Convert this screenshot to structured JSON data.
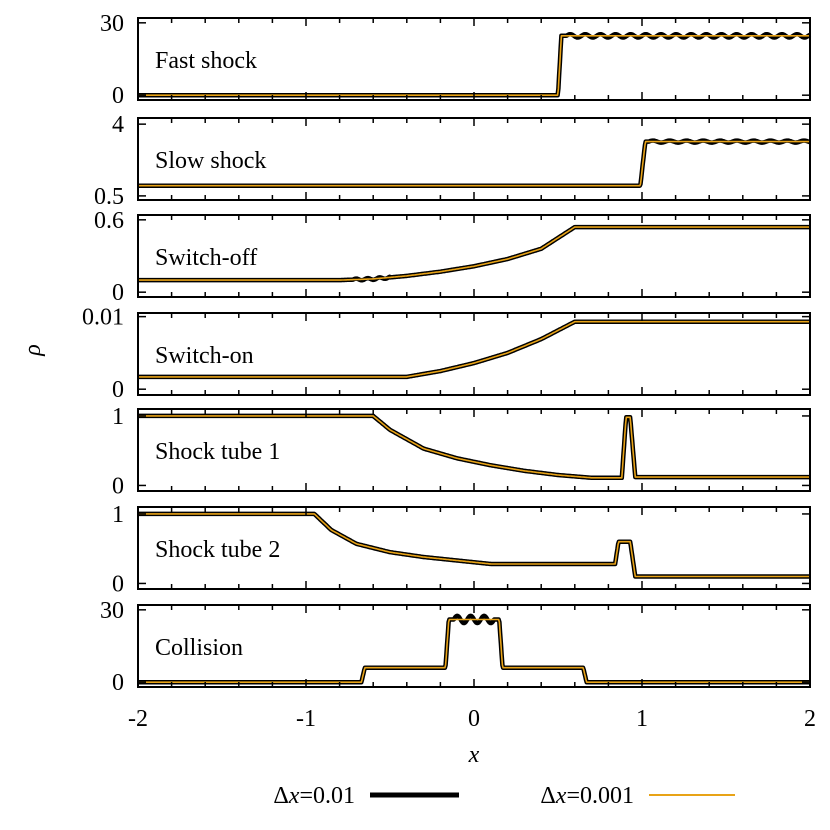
{
  "chart_data": {
    "type": "line",
    "x_axis": {
      "label": "x",
      "range": [
        -2,
        2
      ],
      "ticks": [
        -2,
        -1,
        0,
        1,
        2
      ],
      "tick_labels": [
        "-2",
        "-1",
        "0",
        "1",
        "2"
      ]
    },
    "y_axis": {
      "label": "ρ"
    },
    "legend": {
      "placement": "bottom",
      "entries": [
        {
          "label_prefix": "Δ",
          "label_var": "x",
          "label_value": "=0.01",
          "color": "#000000"
        },
        {
          "label_prefix": "Δ",
          "label_var": "x",
          "label_value": "=0.001",
          "color": "#E8A317"
        }
      ]
    },
    "panels": [
      {
        "name": "Fast shock",
        "ylim": [
          -2,
          32
        ],
        "yticks": [
          0,
          30
        ],
        "ytick_labels": [
          "0",
          "30"
        ],
        "profile": {
          "x": [
            -2,
            0.5,
            0.52,
            2
          ],
          "y": [
            0,
            0,
            24.6,
            24.6
          ]
        },
        "oscillation": {
          "start": 0.55,
          "end": 2.0,
          "amp": 0.7,
          "wavelength": 0.09
        }
      },
      {
        "name": "Slow shock",
        "ylim": [
          0.3,
          4.3
        ],
        "yticks": [
          0.5,
          4
        ],
        "ytick_labels": [
          "0.5",
          "4"
        ],
        "profile": {
          "x": [
            -2,
            0.99,
            1.02,
            2
          ],
          "y": [
            1.0,
            1.0,
            3.15,
            3.15
          ]
        },
        "oscillation": {
          "start": 1.04,
          "end": 2.0,
          "amp": 0.05,
          "wavelength": 0.1
        }
      },
      {
        "name": "Switch-off",
        "ylim": [
          -0.04,
          0.64
        ],
        "yticks": [
          0,
          0.6
        ],
        "ytick_labels": [
          "0",
          "0.6"
        ],
        "profile": {
          "x": [
            -2,
            -0.8,
            -0.6,
            -0.4,
            -0.2,
            0,
            0.2,
            0.4,
            0.6,
            2
          ],
          "y": [
            0.1,
            0.1,
            0.11,
            0.135,
            0.17,
            0.215,
            0.275,
            0.36,
            0.54,
            0.54
          ]
        },
        "oscillation": {
          "start": -0.72,
          "end": -0.5,
          "amp": 0.008,
          "wavelength": 0.07
        }
      },
      {
        "name": "Switch-on",
        "ylim": [
          -0.0008,
          0.0105
        ],
        "yticks": [
          0,
          0.01
        ],
        "ytick_labels": [
          "0",
          "0.01"
        ],
        "profile": {
          "x": [
            -2,
            -0.4,
            -0.2,
            0,
            0.2,
            0.4,
            0.6,
            2
          ],
          "y": [
            0.0017,
            0.0017,
            0.0025,
            0.0036,
            0.005,
            0.0069,
            0.0093,
            0.0093
          ]
        },
        "oscillation": null
      },
      {
        "name": "Shock tube 1",
        "ylim": [
          -0.08,
          1.1
        ],
        "yticks": [
          0,
          1
        ],
        "ytick_labels": [
          "0",
          "1"
        ],
        "profile": {
          "x": [
            -2,
            -0.6,
            -0.5,
            -0.3,
            -0.1,
            0.1,
            0.3,
            0.5,
            0.7,
            0.88,
            0.905,
            0.93,
            0.96,
            2
          ],
          "y": [
            1.0,
            1.0,
            0.8,
            0.53,
            0.39,
            0.29,
            0.21,
            0.15,
            0.11,
            0.11,
            0.98,
            0.98,
            0.12,
            0.12
          ]
        },
        "oscillation": null
      },
      {
        "name": "Shock tube 2",
        "ylim": [
          -0.08,
          1.1
        ],
        "yticks": [
          0,
          1
        ],
        "ytick_labels": [
          "0",
          "1"
        ],
        "profile": {
          "x": [
            -2,
            -0.95,
            -0.85,
            -0.7,
            -0.5,
            -0.3,
            -0.1,
            0.1,
            0.5,
            0.84,
            0.86,
            0.93,
            0.96,
            2
          ],
          "y": [
            1.0,
            1.0,
            0.77,
            0.57,
            0.45,
            0.38,
            0.33,
            0.28,
            0.28,
            0.28,
            0.6,
            0.6,
            0.1,
            0.1
          ]
        },
        "oscillation": null
      },
      {
        "name": "Collision",
        "ylim": [
          -2,
          32
        ],
        "yticks": [
          0,
          30
        ],
        "ytick_labels": [
          "0",
          "30"
        ],
        "profile": {
          "x": [
            -2,
            -0.67,
            -0.65,
            -0.17,
            -0.15,
            0.15,
            0.17,
            0.65,
            0.67,
            2
          ],
          "y": [
            0,
            0,
            6,
            6,
            26,
            26,
            6,
            6,
            0,
            0
          ]
        },
        "oscillation": {
          "start": -0.12,
          "end": 0.12,
          "amp": 1.5,
          "wavelength": 0.08
        }
      }
    ]
  }
}
